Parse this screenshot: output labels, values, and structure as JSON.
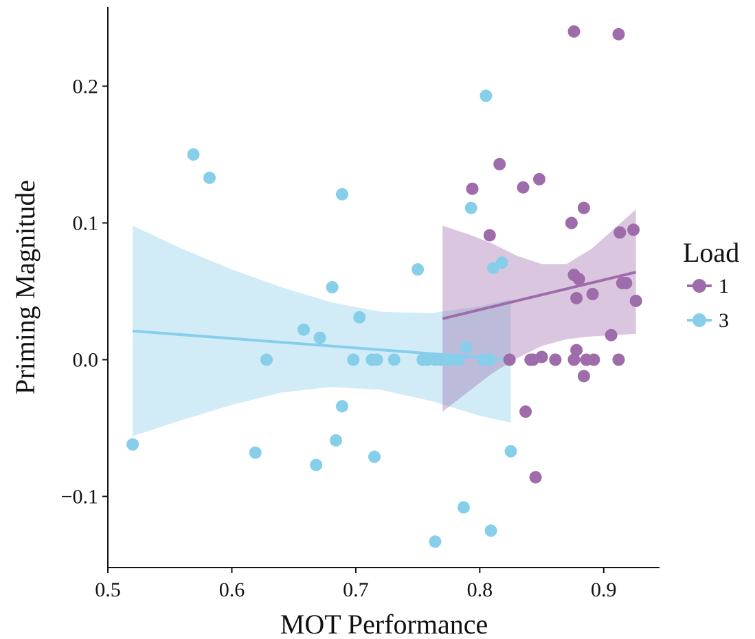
{
  "chart_data": {
    "type": "scatter",
    "title": "",
    "xlabel": "MOT Performance",
    "ylabel": "Priming Magnitude",
    "xlim": [
      0.5,
      0.945
    ],
    "ylim": [
      -0.152,
      0.258
    ],
    "xticks": [
      0.5,
      0.6,
      0.7,
      0.8,
      0.9
    ],
    "xtick_labels": [
      "0.5",
      "0.6",
      "0.7",
      "0.8",
      "0.9"
    ],
    "yticks": [
      -0.1,
      0.0,
      0.1,
      0.2
    ],
    "ytick_labels": [
      "−0.1",
      "0.0",
      "0.1",
      "0.2"
    ],
    "grid": false,
    "legend": {
      "title": "Load",
      "placement": "right",
      "entries": [
        "1",
        "3"
      ]
    },
    "series": [
      {
        "name": "1",
        "color": "#9e6bab",
        "points": [
          [
            0.876,
            0.24
          ],
          [
            0.912,
            0.238
          ],
          [
            0.816,
            0.143
          ],
          [
            0.848,
            0.132
          ],
          [
            0.835,
            0.126
          ],
          [
            0.794,
            0.125
          ],
          [
            0.884,
            0.111
          ],
          [
            0.874,
            0.1
          ],
          [
            0.913,
            0.093
          ],
          [
            0.924,
            0.095
          ],
          [
            0.808,
            0.091
          ],
          [
            0.876,
            0.062
          ],
          [
            0.88,
            0.059
          ],
          [
            0.915,
            0.056
          ],
          [
            0.918,
            0.056
          ],
          [
            0.891,
            0.048
          ],
          [
            0.878,
            0.045
          ],
          [
            0.926,
            0.043
          ],
          [
            0.906,
            0.018
          ],
          [
            0.878,
            0.007
          ],
          [
            0.824,
            0.0
          ],
          [
            0.841,
            0.0
          ],
          [
            0.843,
            0.0
          ],
          [
            0.85,
            0.002
          ],
          [
            0.861,
            0.0
          ],
          [
            0.876,
            0.0
          ],
          [
            0.886,
            0.0
          ],
          [
            0.892,
            0.0
          ],
          [
            0.912,
            0.0
          ],
          [
            0.884,
            -0.012
          ],
          [
            0.837,
            -0.038
          ],
          [
            0.845,
            -0.086
          ]
        ],
        "fit_line": [
          [
            0.77,
            0.03
          ],
          [
            0.926,
            0.064
          ]
        ],
        "ci_band": {
          "x": [
            0.77,
            0.79,
            0.81,
            0.83,
            0.85,
            0.87,
            0.89,
            0.91,
            0.926
          ],
          "upper": [
            0.098,
            0.092,
            0.085,
            0.076,
            0.07,
            0.07,
            0.081,
            0.097,
            0.11
          ],
          "lower": [
            -0.038,
            -0.024,
            -0.01,
            0.001,
            0.01,
            0.015,
            0.017,
            0.018,
            0.019
          ]
        }
      },
      {
        "name": "3",
        "color": "#87ceeb",
        "points": [
          [
            0.805,
            0.193
          ],
          [
            0.569,
            0.15
          ],
          [
            0.582,
            0.133
          ],
          [
            0.689,
            0.121
          ],
          [
            0.793,
            0.111
          ],
          [
            0.818,
            0.071
          ],
          [
            0.811,
            0.067
          ],
          [
            0.75,
            0.066
          ],
          [
            0.681,
            0.053
          ],
          [
            0.703,
            0.031
          ],
          [
            0.658,
            0.022
          ],
          [
            0.671,
            0.016
          ],
          [
            0.789,
            0.009
          ],
          [
            0.628,
            0.0
          ],
          [
            0.698,
            0.0
          ],
          [
            0.713,
            0.0
          ],
          [
            0.717,
            0.0
          ],
          [
            0.731,
            0.0
          ],
          [
            0.754,
            0.0
          ],
          [
            0.758,
            0.0
          ],
          [
            0.764,
            0.0
          ],
          [
            0.768,
            0.0
          ],
          [
            0.772,
            0.0
          ],
          [
            0.776,
            0.0
          ],
          [
            0.783,
            0.0
          ],
          [
            0.803,
            0.0
          ],
          [
            0.808,
            0.0
          ],
          [
            0.689,
            -0.034
          ],
          [
            0.52,
            -0.062
          ],
          [
            0.684,
            -0.059
          ],
          [
            0.825,
            -0.067
          ],
          [
            0.619,
            -0.068
          ],
          [
            0.715,
            -0.071
          ],
          [
            0.668,
            -0.077
          ],
          [
            0.787,
            -0.108
          ],
          [
            0.809,
            -0.125
          ],
          [
            0.764,
            -0.133
          ]
        ],
        "fit_line": [
          [
            0.52,
            0.021
          ],
          [
            0.825,
            0.0
          ]
        ],
        "ci_band": {
          "x": [
            0.52,
            0.56,
            0.6,
            0.64,
            0.68,
            0.72,
            0.76,
            0.8,
            0.825
          ],
          "upper": [
            0.098,
            0.081,
            0.066,
            0.053,
            0.042,
            0.035,
            0.034,
            0.039,
            0.044
          ],
          "lower": [
            -0.056,
            -0.044,
            -0.033,
            -0.024,
            -0.02,
            -0.022,
            -0.03,
            -0.041,
            -0.046
          ]
        }
      }
    ]
  }
}
